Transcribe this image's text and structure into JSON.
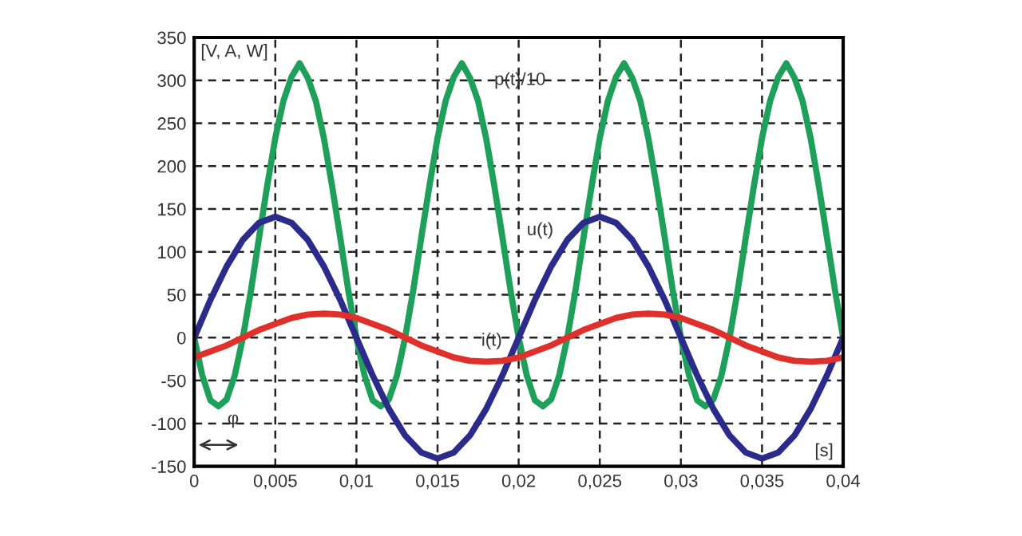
{
  "chart_data": {
    "type": "line",
    "xlim": [
      0,
      0.04
    ],
    "ylim": [
      -150,
      350
    ],
    "xticks": [
      0,
      {
        "value": 0.005,
        "label": "0,005"
      },
      {
        "value": 0.01,
        "label": "0,01"
      },
      {
        "value": 0.015,
        "label": "0,015"
      },
      {
        "value": 0.02,
        "label": "0,02"
      },
      {
        "value": 0.025,
        "label": "0,025"
      },
      {
        "value": 0.03,
        "label": "0,03"
      },
      {
        "value": 0.035,
        "label": "0,035"
      },
      {
        "value": 0.04,
        "label": "0,04"
      }
    ],
    "yticks": [
      -150,
      -100,
      -50,
      0,
      50,
      100,
      150,
      200,
      250,
      300,
      350
    ],
    "grid": true,
    "legend": false,
    "annotations": [
      "[V, A, W]",
      "[s]",
      "φ"
    ],
    "series": [
      {
        "name": "p(t)/10",
        "color": "#1fa05a",
        "x": [
          0,
          0.0005,
          0.001,
          0.0015,
          0.002,
          0.0025,
          0.003,
          0.0035,
          0.004,
          0.0045,
          0.005,
          0.0055,
          0.006,
          0.0065,
          0.007,
          0.0075,
          0.008,
          0.0085,
          0.009,
          0.0095,
          0.01,
          0.0105,
          0.011,
          0.0115,
          0.012,
          0.0125,
          0.013,
          0.0135,
          0.014,
          0.0145,
          0.015,
          0.0155,
          0.016,
          0.0165,
          0.017,
          0.0175,
          0.018,
          0.0185,
          0.019,
          0.0195,
          0.02,
          0.0205,
          0.021,
          0.0215,
          0.022,
          0.0225,
          0.023,
          0.0235,
          0.024,
          0.0245,
          0.025,
          0.0255,
          0.026,
          0.0265,
          0.027,
          0.0275,
          0.028,
          0.0285,
          0.029,
          0.0295,
          0.03,
          0.0305,
          0.031,
          0.0315,
          0.032,
          0.0325,
          0.033,
          0.0335,
          0.034,
          0.0345,
          0.035,
          0.0355,
          0.036,
          0.0365,
          0.037,
          0.0375,
          0.038,
          0.0385,
          0.039,
          0.0395,
          0.04
        ],
        "values": [
          0,
          -44,
          -73,
          -80,
          -72,
          -44,
          0,
          55,
          117,
          177,
          233,
          276,
          304,
          320,
          303,
          276,
          232,
          177,
          117,
          55,
          0,
          -44,
          -73,
          -80,
          -72,
          -44,
          0,
          55,
          117,
          177,
          233,
          276,
          304,
          320,
          303,
          276,
          232,
          177,
          117,
          55,
          0,
          -44,
          -73,
          -80,
          -72,
          -44,
          0,
          55,
          117,
          177,
          233,
          276,
          304,
          320,
          303,
          276,
          232,
          177,
          117,
          55,
          0,
          -44,
          -73,
          -80,
          -72,
          -44,
          0,
          55,
          117,
          177,
          233,
          276,
          304,
          320,
          303,
          276,
          232,
          177,
          117,
          55,
          0
        ]
      },
      {
        "name": "u(t)",
        "color": "#2b2b8c",
        "x": [
          0,
          0.001,
          0.002,
          0.003,
          0.004,
          0.005,
          0.006,
          0.007,
          0.008,
          0.009,
          0.01,
          0.011,
          0.012,
          0.013,
          0.014,
          0.015,
          0.016,
          0.017,
          0.018,
          0.019,
          0.02,
          0.021,
          0.022,
          0.023,
          0.024,
          0.025,
          0.026,
          0.027,
          0.028,
          0.029,
          0.03,
          0.031,
          0.032,
          0.033,
          0.034,
          0.035,
          0.036,
          0.037,
          0.038,
          0.039,
          0.04
        ],
        "values": [
          0,
          44,
          83,
          114,
          134,
          141,
          134,
          114,
          83,
          44,
          0,
          -44,
          -83,
          -114,
          -134,
          -141,
          -134,
          -114,
          -83,
          -44,
          0,
          44,
          83,
          114,
          134,
          141,
          134,
          114,
          83,
          44,
          0,
          -44,
          -83,
          -114,
          -134,
          -141,
          -134,
          -114,
          -83,
          -44,
          0
        ]
      },
      {
        "name": "i(t)",
        "color": "#e0302c",
        "x": [
          0,
          0.001,
          0.002,
          0.003,
          0.004,
          0.005,
          0.006,
          0.007,
          0.008,
          0.009,
          0.01,
          0.011,
          0.012,
          0.013,
          0.014,
          0.015,
          0.016,
          0.017,
          0.018,
          0.019,
          0.02,
          0.021,
          0.022,
          0.023,
          0.024,
          0.025,
          0.026,
          0.027,
          0.028,
          0.029,
          0.03,
          0.031,
          0.032,
          0.033,
          0.034,
          0.035,
          0.036,
          0.037,
          0.038,
          0.039,
          0.04
        ],
        "values": [
          -23,
          -16,
          -9,
          0,
          9,
          16,
          23,
          27,
          28,
          27,
          23,
          16,
          9,
          0,
          -9,
          -16,
          -23,
          -27,
          -28,
          -27,
          -23,
          -16,
          -9,
          0,
          9,
          16,
          23,
          27,
          28,
          27,
          23,
          16,
          9,
          0,
          -9,
          -16,
          -23,
          -27,
          -28,
          -27,
          -23
        ]
      }
    ]
  }
}
